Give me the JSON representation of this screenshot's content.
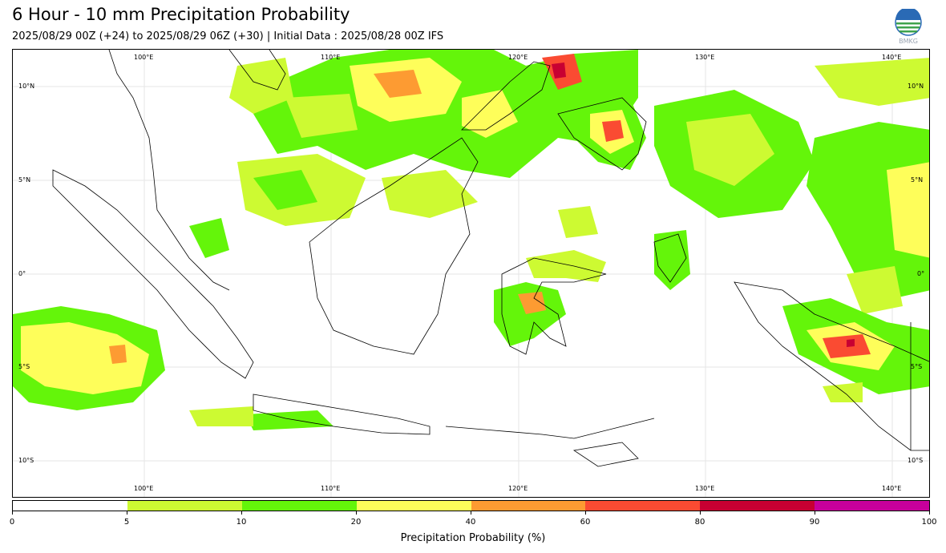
{
  "header": {
    "title": "6 Hour - 10 mm Precipitation Probability",
    "subtitle": "2025/08/29 00Z (+24) to 2025/08/29 06Z (+30) | Initial Data : 2025/08/28 00Z IFS"
  },
  "logo": {
    "text": "BMKG",
    "icon": "bmkg-logo"
  },
  "map": {
    "lon_labels_top": [
      "100°E",
      "110°E",
      "120°E",
      "130°E",
      "140°E"
    ],
    "lon_labels_bottom": [
      "100°E",
      "110°E",
      "120°E",
      "130°E",
      "140°E"
    ],
    "lat_labels_left": [
      "10°N",
      "5°N",
      "0°",
      "5°S",
      "10°S"
    ],
    "lat_labels_right": [
      "10°N",
      "5°N",
      "0°",
      "5°S",
      "10°S"
    ],
    "colors": {
      "lt5_20": "#cdfa32",
      "p10_20": "#64f50a",
      "p20_40": "#fefe5a",
      "p40_60": "#fd9b32",
      "p60_80": "#fa4b32",
      "p80_90": "#c80032",
      "coast": "#000000"
    }
  },
  "colorbar": {
    "ticks": [
      "0",
      "5",
      "10",
      "20",
      "40",
      "60",
      "80",
      "90",
      "100"
    ],
    "colors": [
      "#ffffff",
      "#cdfa32",
      "#64f50a",
      "#fefe5a",
      "#fd9b32",
      "#fa4b32",
      "#c80032",
      "#c8009b"
    ],
    "label": "Precipitation Probability (%)"
  }
}
